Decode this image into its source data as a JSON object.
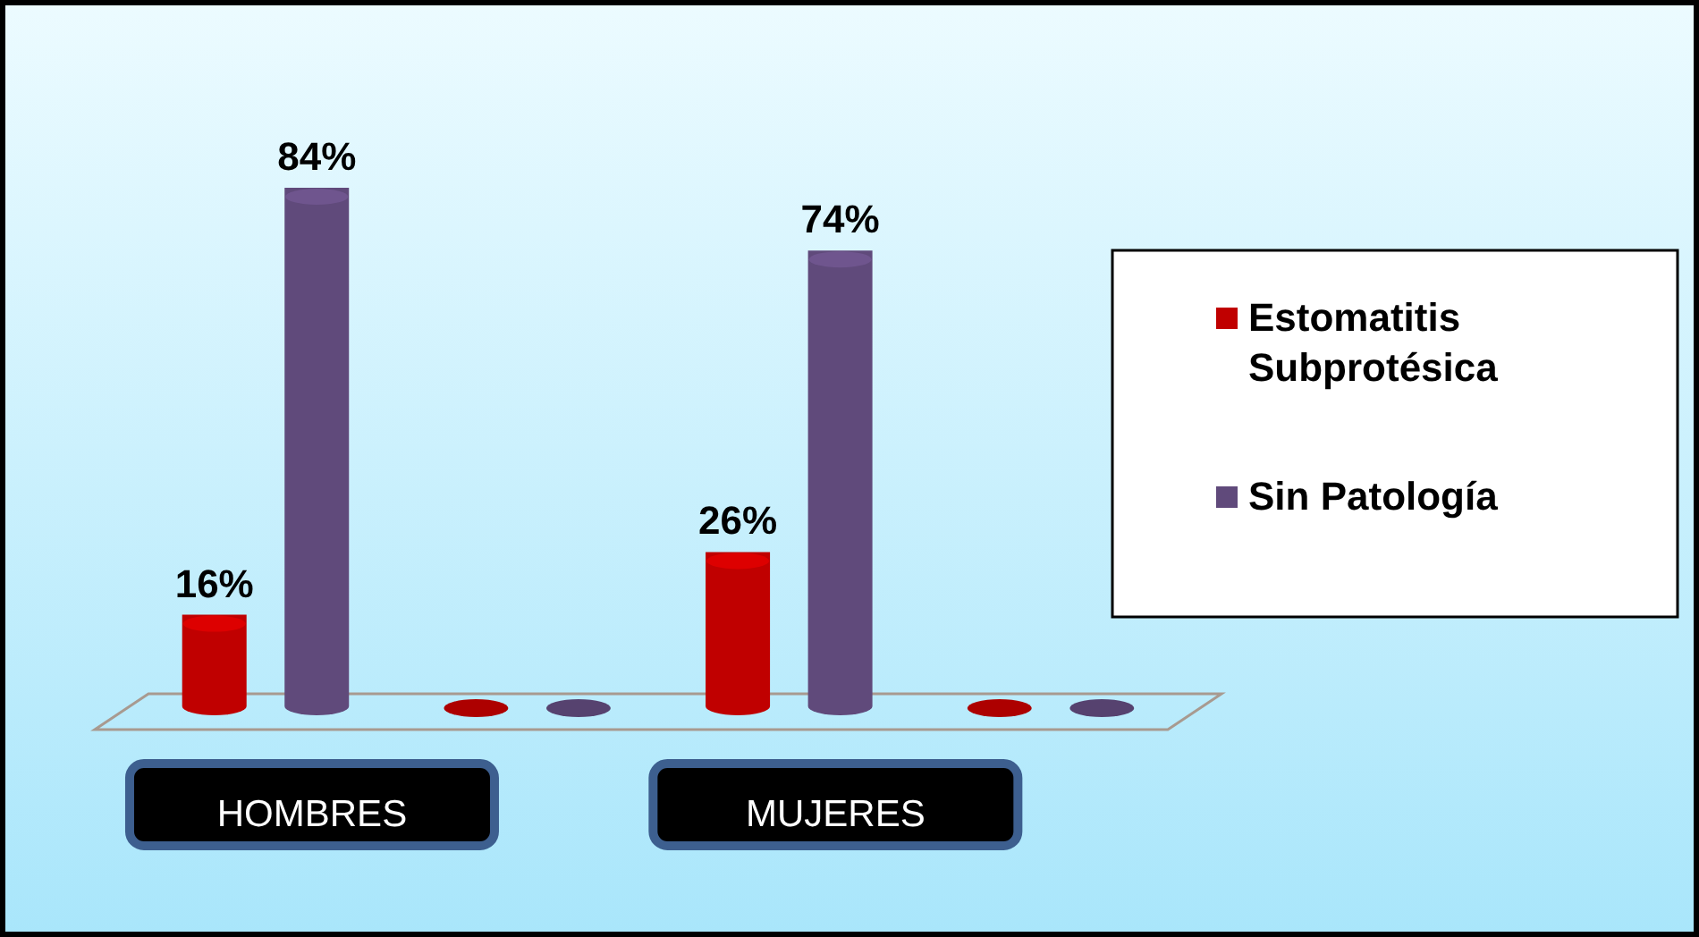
{
  "chart_data": {
    "type": "bar",
    "categories": [
      "HOMBRES",
      null,
      "MUJERES",
      null
    ],
    "series": [
      {
        "name": "Estomatitis Subprotésica",
        "color": "#c00000",
        "values": [
          16,
          0,
          26,
          0
        ],
        "value_labels": [
          "16%",
          null,
          "26%",
          null
        ]
      },
      {
        "name": "Sin Patología",
        "color": "#604a7b",
        "values": [
          84,
          0,
          74,
          0
        ],
        "value_labels": [
          "84%",
          null,
          "74%",
          null
        ]
      }
    ],
    "legend": "right"
  }
}
